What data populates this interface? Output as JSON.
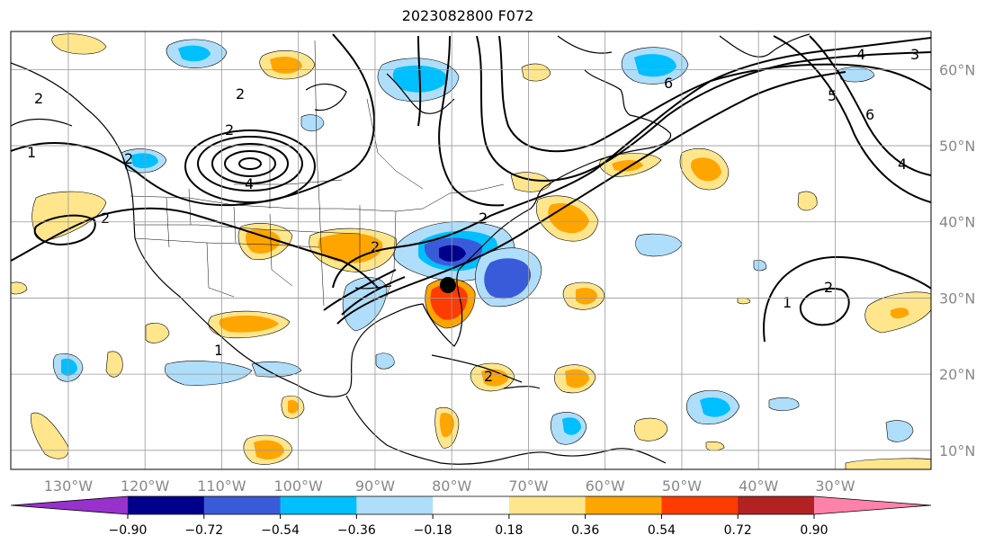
{
  "title": "2023082800 F072",
  "map": {
    "lon_range": [
      -137.5,
      -17.5
    ],
    "lat_range": [
      7.5,
      65
    ],
    "lon_labels": [
      "130°W",
      "120°W",
      "110°W",
      "100°W",
      "90°W",
      "80°W",
      "70°W",
      "60°W",
      "50°W",
      "40°W",
      "30°W"
    ],
    "lat_labels": [
      "10°N",
      "20°N",
      "30°N",
      "40°N",
      "50°N",
      "60°N"
    ],
    "gridlines": true,
    "marker": {
      "lon": -80.5,
      "lat": 31.7,
      "color": "#000000"
    }
  },
  "colorbar": {
    "levels": [
      "−0.90",
      "−0.72",
      "−0.54",
      "−0.36",
      "−0.18",
      "0.18",
      "0.36",
      "0.54",
      "0.72",
      "0.90"
    ],
    "colors": [
      "#9932cc",
      "#00008b",
      "#3a5bd9",
      "#00bfff",
      "#afdefa",
      "#ffffff",
      "#ffe68c",
      "#ffa500",
      "#ff3c00",
      "#b22222",
      "#ff82ab"
    ],
    "extend": "both"
  },
  "contour_labels": [
    "2",
    "2",
    "2",
    "2",
    "4",
    "4",
    "4",
    "5",
    "6",
    "6",
    "1",
    "1",
    "1",
    "2",
    "2",
    "2",
    "2",
    "3",
    "2"
  ]
}
